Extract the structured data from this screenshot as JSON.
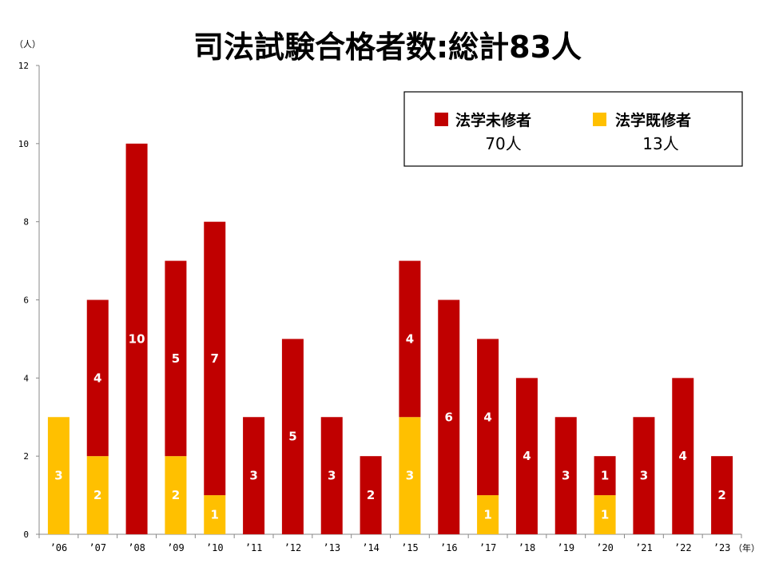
{
  "chart_data": {
    "type": "bar",
    "stacked": true,
    "title": "司法試験合格者数:総計83人",
    "ylabel": "（人）",
    "xlabel": "（年）",
    "ylim": [
      0,
      12
    ],
    "yticks": [
      0,
      2,
      4,
      6,
      8,
      10,
      12
    ],
    "categories": [
      "’06",
      "’07",
      "’08",
      "’09",
      "’10",
      "’11",
      "’12",
      "’13",
      "’14",
      "’15",
      "’16",
      "’17",
      "’18",
      "’19",
      "’20",
      "’21",
      "’22",
      "’23"
    ],
    "series": [
      {
        "name": "法学既修者",
        "color": "#FFC000",
        "values": [
          3,
          2,
          0,
          2,
          1,
          0,
          0,
          0,
          0,
          3,
          0,
          1,
          0,
          0,
          1,
          0,
          0,
          0
        ]
      },
      {
        "name": "法学未修者",
        "color": "#C00000",
        "values": [
          0,
          4,
          10,
          5,
          7,
          3,
          5,
          3,
          2,
          4,
          6,
          4,
          4,
          3,
          1,
          3,
          4,
          2
        ]
      }
    ],
    "legend": {
      "placement": "top-right",
      "items": [
        {
          "name": "法学未修者",
          "count": "70人",
          "color": "#C00000"
        },
        {
          "name": "法学既修者",
          "count": "13人",
          "color": "#FFC000"
        }
      ]
    }
  }
}
